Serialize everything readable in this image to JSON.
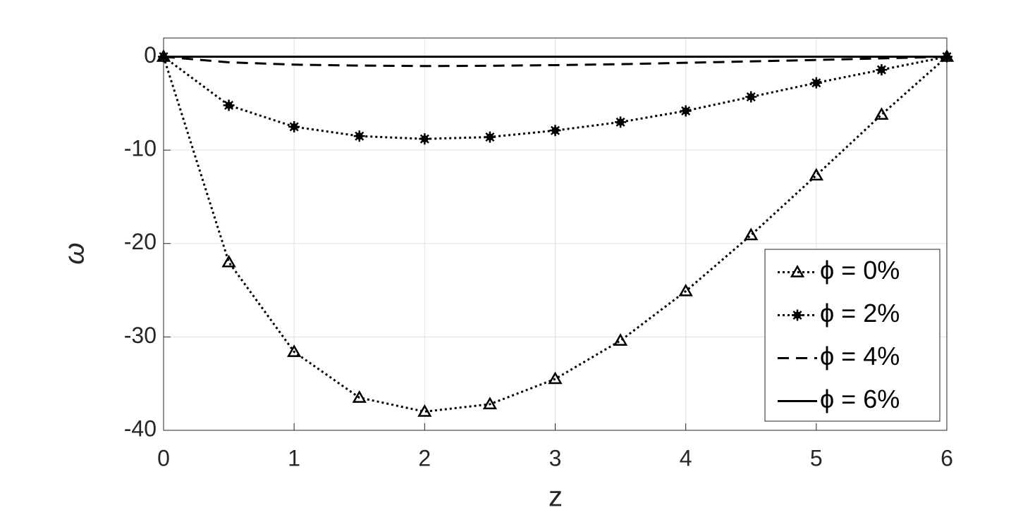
{
  "chart_data": {
    "type": "line",
    "x": [
      0,
      0.5,
      1,
      1.5,
      2,
      2.5,
      3,
      3.5,
      4,
      4.5,
      5,
      5.5,
      6
    ],
    "series": [
      {
        "name": "ϕ = 0%",
        "color": "#000000",
        "dash": "dotted",
        "marker": "triangle",
        "values": [
          0,
          -22,
          -31.6,
          -36.5,
          -38,
          -37.2,
          -34.5,
          -30.4,
          -25.1,
          -19.1,
          -12.7,
          -6.2,
          0
        ]
      },
      {
        "name": "ϕ = 2%",
        "color": "#000000",
        "dash": "dotted",
        "marker": "star",
        "values": [
          0,
          -5.2,
          -7.5,
          -8.5,
          -8.8,
          -8.6,
          -7.9,
          -7.0,
          -5.8,
          -4.3,
          -2.8,
          -1.4,
          0
        ]
      },
      {
        "name": "ϕ = 4%",
        "color": "#000000",
        "dash": "dashed",
        "marker": "none",
        "values": [
          0,
          -0.6,
          -0.85,
          -0.95,
          -1.0,
          -0.97,
          -0.9,
          -0.8,
          -0.65,
          -0.5,
          -0.35,
          -0.18,
          0
        ]
      },
      {
        "name": "ϕ = 6%",
        "color": "#000000",
        "dash": "solid",
        "marker": "none",
        "values": [
          0,
          0,
          0,
          0,
          0,
          0,
          0,
          0,
          0,
          0,
          0,
          0,
          0
        ]
      }
    ],
    "x_label": "z",
    "y_label": "ω",
    "xlim": [
      0,
      6
    ],
    "xticks": [
      0,
      1,
      2,
      3,
      4,
      5,
      6
    ],
    "ylim": [
      -40,
      2
    ],
    "yticks": [
      -40,
      -30,
      -20,
      -10,
      0
    ],
    "grid": true,
    "legend": "lower right"
  }
}
